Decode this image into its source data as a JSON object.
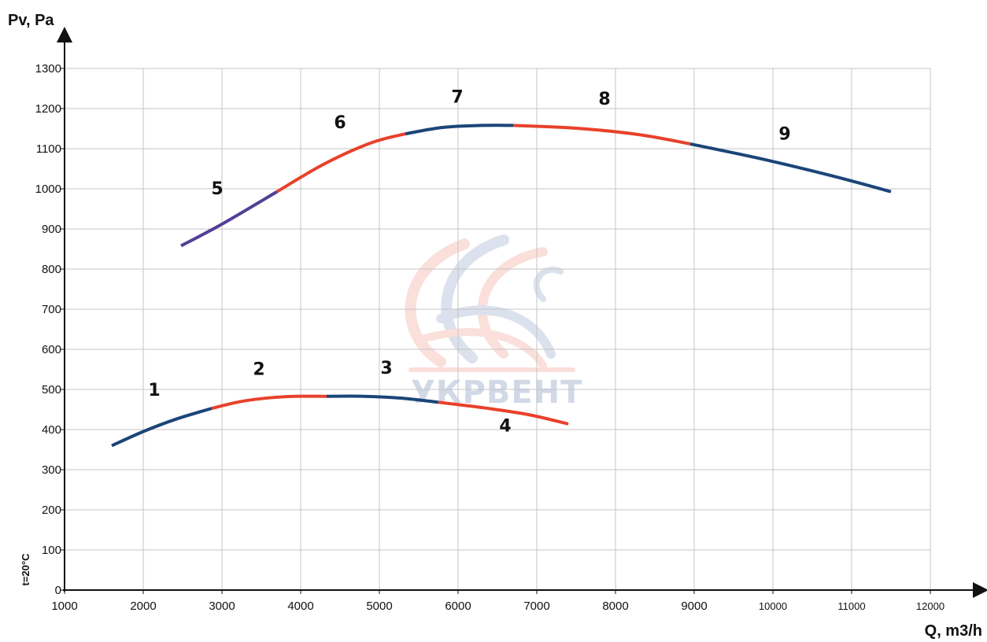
{
  "chart_data": {
    "type": "line",
    "xlabel": "Q, m3/h",
    "ylabel": "Pv, Pa",
    "annotation": "t=20°C",
    "watermark": "УКРВЕНТ",
    "xlim": [
      1000,
      12000
    ],
    "ylim": [
      0,
      1300
    ],
    "x_ticks": [
      "1000",
      "2000",
      "3000",
      "4000",
      "5000",
      "6000",
      "7000",
      "8000",
      "9000",
      "10000",
      "11000",
      "12000"
    ],
    "y_ticks": [
      "0",
      "100",
      "200",
      "300",
      "400",
      "500",
      "600",
      "700",
      "800",
      "900",
      "1000",
      "1100",
      "1200",
      "1300"
    ],
    "grid": true,
    "colors": {
      "blue": "#1b4579",
      "red": "#e8412c",
      "purple": "#523f95",
      "watermark_blue": "#9aaccc",
      "watermark_red": "#f2a59a"
    },
    "series": [
      {
        "name": "1",
        "color": "#1b4579",
        "x": [
          1600,
          2000,
          2400,
          2870
        ],
        "y": [
          360,
          395,
          425,
          453
        ]
      },
      {
        "name": "2",
        "color": "#e8412c",
        "x": [
          2870,
          3300,
          3800,
          4330
        ],
        "y": [
          453,
          472,
          482,
          483
        ]
      },
      {
        "name": "3",
        "color": "#1b4579",
        "x": [
          4330,
          4800,
          5300,
          5750
        ],
        "y": [
          483,
          483,
          478,
          468
        ]
      },
      {
        "name": "4",
        "color": "#e8412c",
        "x": [
          5750,
          6300,
          6900,
          7400
        ],
        "y": [
          468,
          455,
          437,
          414
        ]
      },
      {
        "name": "5",
        "color": "#523f95",
        "x": [
          2480,
          3000,
          3700
        ],
        "y": [
          858,
          912,
          993
        ]
      },
      {
        "name": "6",
        "color": "#e8412c",
        "x": [
          3700,
          4300,
          4900,
          5330
        ],
        "y": [
          993,
          1062,
          1115,
          1137
        ]
      },
      {
        "name": "7",
        "color": "#1b4579",
        "x": [
          5330,
          5800,
          6300,
          6700
        ],
        "y": [
          1137,
          1153,
          1158,
          1158
        ]
      },
      {
        "name": "8",
        "color": "#e8412c",
        "x": [
          6700,
          7500,
          8300,
          8950
        ],
        "y": [
          1158,
          1151,
          1135,
          1112
        ]
      },
      {
        "name": "9",
        "color": "#1b4579",
        "x": [
          8950,
          9800,
          10700,
          11500
        ],
        "y": [
          1112,
          1077,
          1035,
          993
        ]
      }
    ]
  }
}
